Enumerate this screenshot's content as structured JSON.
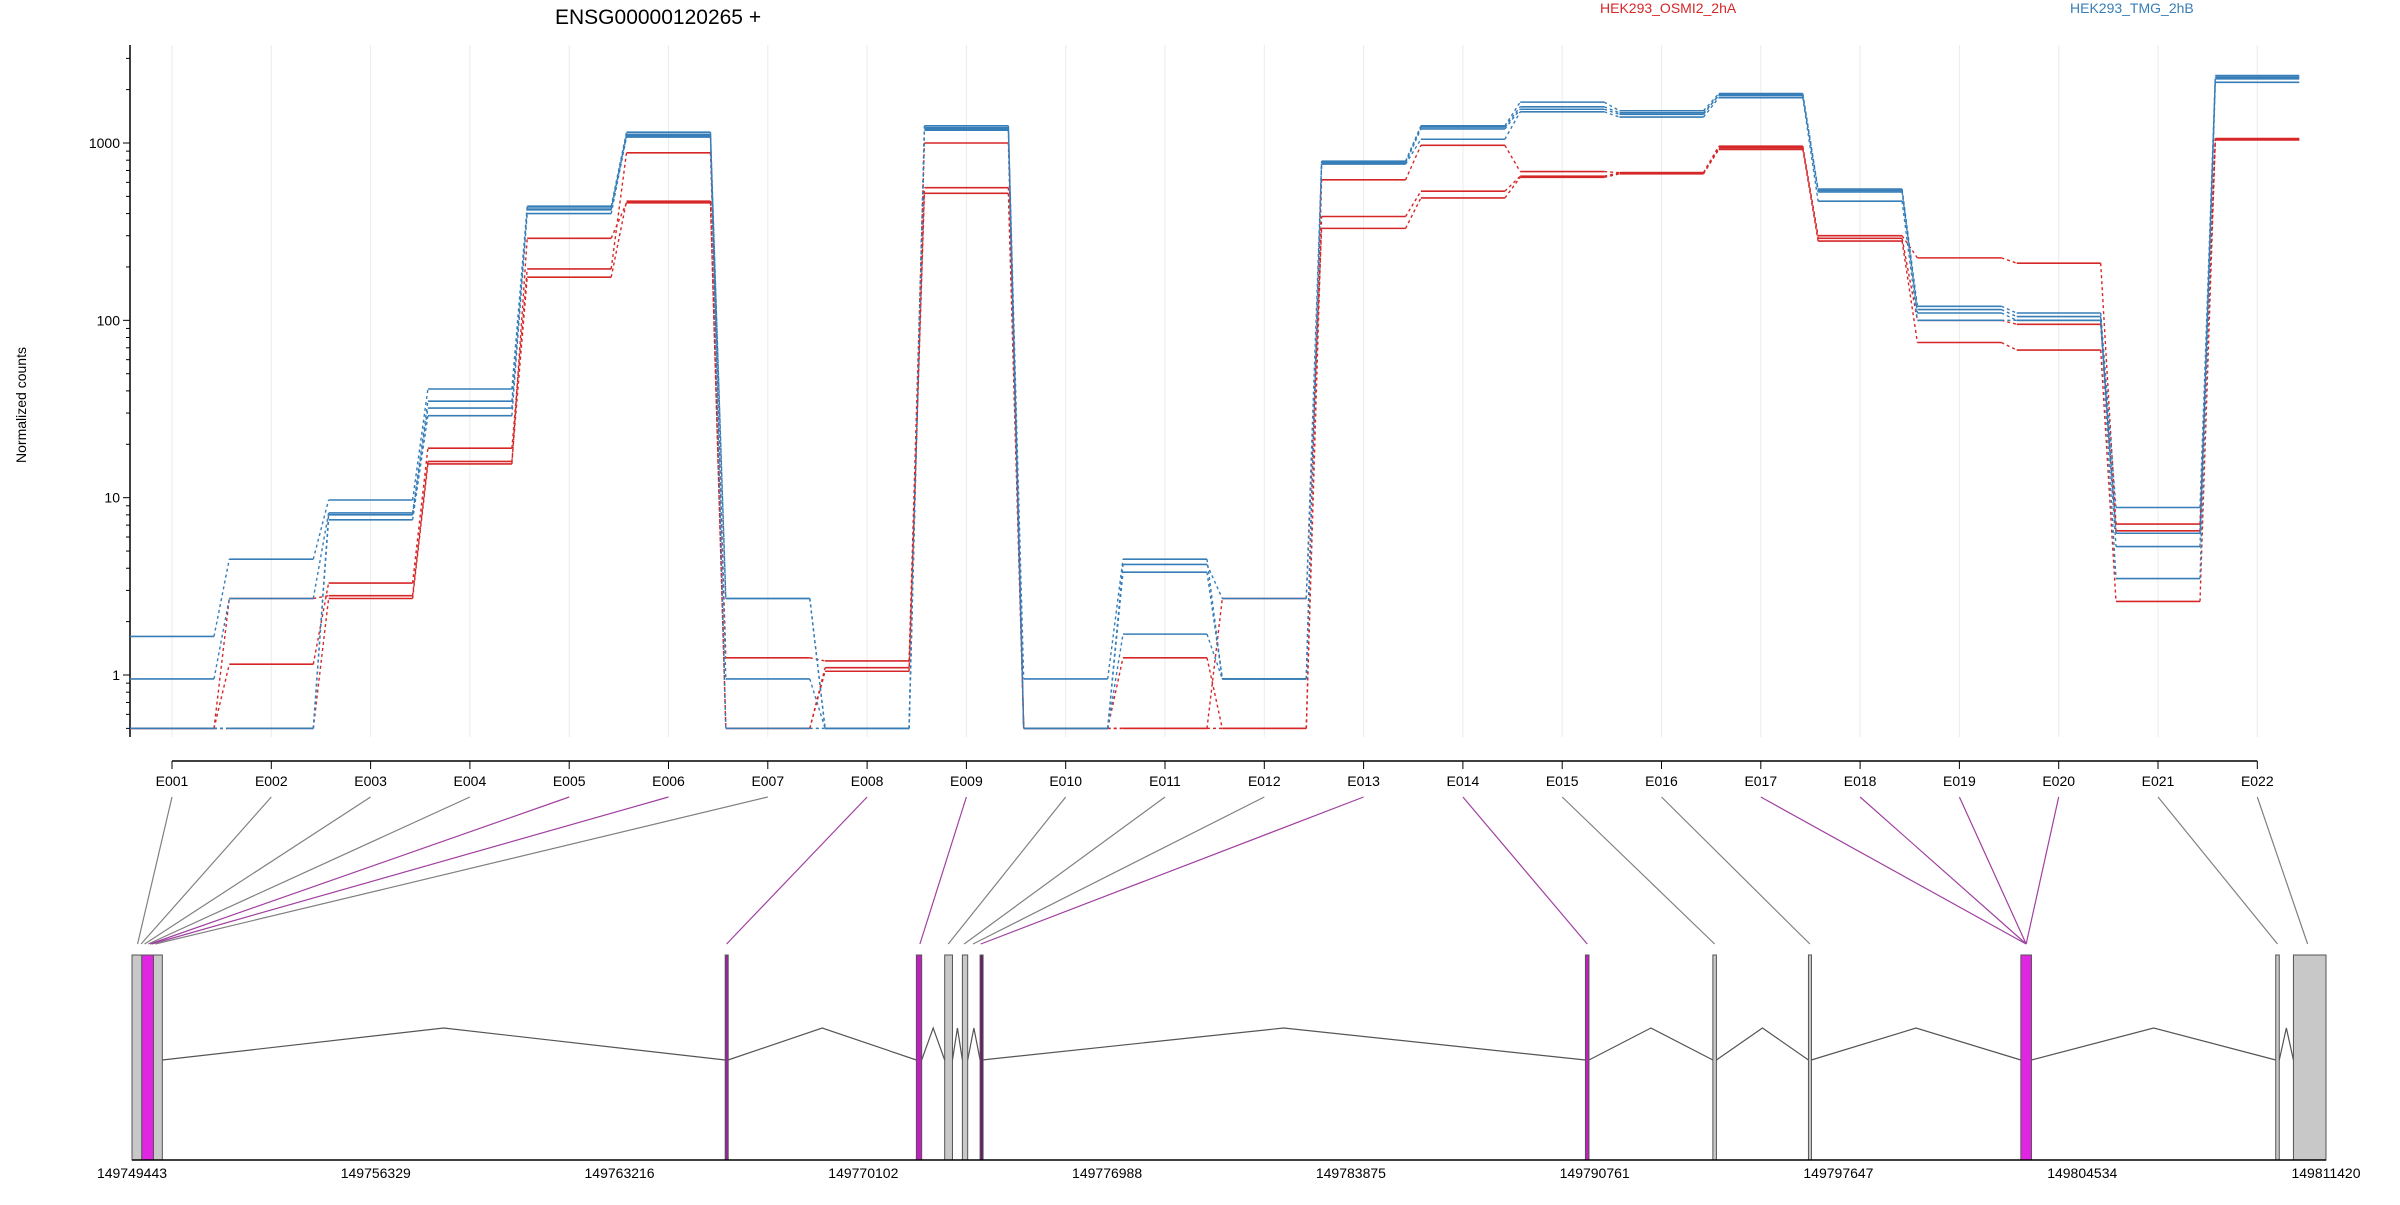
{
  "chart_data": {
    "type": "line",
    "title": "ENSG00000120265 +",
    "ylabel": "Normalized counts",
    "yscale": "log",
    "ylim": [
      0.5,
      3500
    ],
    "yticks": [
      1,
      10,
      100,
      1000
    ],
    "ytick_labels": [
      "1",
      "10",
      "100",
      "1000"
    ],
    "grid": "vertical-light",
    "legend_placement": "top-right",
    "legend": [
      {
        "label": "HEK293_OSMI2_2hA",
        "color": "#d62728"
      },
      {
        "label": "HEK293_TMG_2hB",
        "color": "#377eb8"
      }
    ],
    "categories": [
      "E001",
      "E002",
      "E003",
      "E004",
      "E005",
      "E006",
      "E007",
      "E008",
      "E009",
      "E010",
      "E011",
      "E012",
      "E013",
      "E014",
      "E015",
      "E016",
      "E017",
      "E018",
      "E019",
      "E020",
      "E021",
      "E022"
    ],
    "series": [
      {
        "color": "#d62728",
        "values": [
          0.5,
          1.15,
          3.3,
          19,
          195,
          880,
          1.25,
          1.2,
          1000,
          0.5,
          1.25,
          0.5,
          620,
          970,
          690,
          680,
          960,
          300,
          225,
          210,
          7.1,
          1060
        ]
      },
      {
        "color": "#d62728",
        "values": [
          0.5,
          2.7,
          2.8,
          16,
          175,
          470,
          0.5,
          1.1,
          560,
          0.5,
          0.5,
          0.5,
          385,
          535,
          650,
          680,
          940,
          290,
          100,
          95,
          6.5,
          1050
        ]
      },
      {
        "color": "#d62728",
        "values": [
          0.5,
          0.5,
          2.7,
          15.5,
          290,
          460,
          0.5,
          1.05,
          520,
          0.5,
          0.5,
          2.7,
          330,
          490,
          640,
          670,
          920,
          280,
          75,
          68,
          2.6,
          1040
        ]
      },
      {
        "color": "#377eb8",
        "values": [
          1.65,
          4.5,
          9.7,
          41,
          440,
          1150,
          2.7,
          0.5,
          1250,
          0.95,
          4.5,
          0.95,
          790,
          1250,
          1700,
          1520,
          1900,
          550,
          120,
          110,
          8.8,
          2400
        ]
      },
      {
        "color": "#377eb8",
        "values": [
          0.95,
          2.7,
          8.2,
          35,
          430,
          1120,
          0.95,
          0.5,
          1200,
          0.5,
          4.2,
          2.7,
          780,
          1230,
          1600,
          1480,
          1850,
          540,
          115,
          105,
          5.3,
          2300
        ]
      },
      {
        "color": "#377eb8",
        "values": [
          0.5,
          0.5,
          7.5,
          29,
          400,
          1080,
          0.5,
          0.5,
          1180,
          0.5,
          1.7,
          0.95,
          760,
          1050,
          1500,
          1400,
          1800,
          470,
          100,
          100,
          3.5,
          2200
        ]
      },
      {
        "color": "#377eb8",
        "values": [
          0.5,
          0.5,
          8.0,
          32,
          420,
          1100,
          2.7,
          0.5,
          1220,
          0.5,
          3.8,
          0.95,
          770,
          1200,
          1550,
          1450,
          1870,
          530,
          110,
          100,
          6.3,
          2350
        ]
      }
    ],
    "genomic_axis": {
      "range": [
        149749443,
        149811420
      ],
      "ticks": [
        149749443,
        149756329,
        149763216,
        149770102,
        149776988,
        149783875,
        149790761,
        149797647,
        149804534,
        149811420
      ],
      "tick_labels": [
        "149749443",
        "149756329",
        "149763216",
        "149770102",
        "149776988",
        "149783875",
        "149790761",
        "149797647",
        "149804534",
        "149811420"
      ]
    },
    "exon_model": [
      {
        "start": 149749443,
        "end": 149749720,
        "color": "#c8c8c8"
      },
      {
        "start": 149749720,
        "end": 149750050,
        "color": "#e026e0"
      },
      {
        "start": 149750050,
        "end": 149750300,
        "color": "#c8c8c8"
      },
      {
        "start": 149766200,
        "end": 149766280,
        "color": "#a020a0"
      },
      {
        "start": 149771600,
        "end": 149771750,
        "color": "#c020c0"
      },
      {
        "start": 149772400,
        "end": 149772620,
        "color": "#c8c8c8"
      },
      {
        "start": 149772900,
        "end": 149773050,
        "color": "#c8c8c8"
      },
      {
        "start": 149773400,
        "end": 149773450,
        "color": "#6a1a6a"
      },
      {
        "start": 149790500,
        "end": 149790600,
        "color": "#c020c0"
      },
      {
        "start": 149794100,
        "end": 149794200,
        "color": "#c8c8c8"
      },
      {
        "start": 149796800,
        "end": 149796880,
        "color": "#c8c8c8"
      },
      {
        "start": 149802800,
        "end": 149803100,
        "color": "#e026e0"
      },
      {
        "start": 149810000,
        "end": 149810100,
        "color": "#c8c8c8"
      },
      {
        "start": 149810500,
        "end": 149811420,
        "color": "#c8c8c8"
      }
    ],
    "exon_links": [
      {
        "bin": "E001",
        "pos": 149749600,
        "color": "#808080"
      },
      {
        "bin": "E002",
        "pos": 149749700,
        "color": "#808080"
      },
      {
        "bin": "E003",
        "pos": 149749800,
        "color": "#808080"
      },
      {
        "bin": "E004",
        "pos": 149749900,
        "color": "#808080"
      },
      {
        "bin": "E005",
        "pos": 149749950,
        "color": "#a040a0"
      },
      {
        "bin": "E006",
        "pos": 149750000,
        "color": "#a040a0"
      },
      {
        "bin": "E007",
        "pos": 149750100,
        "color": "#808080"
      },
      {
        "bin": "E008",
        "pos": 149766240,
        "color": "#a040a0"
      },
      {
        "bin": "E009",
        "pos": 149771700,
        "color": "#a040a0"
      },
      {
        "bin": "E010",
        "pos": 149772500,
        "color": "#808080"
      },
      {
        "bin": "E011",
        "pos": 149772950,
        "color": "#808080"
      },
      {
        "bin": "E012",
        "pos": 149773200,
        "color": "#808080"
      },
      {
        "bin": "E013",
        "pos": 149773420,
        "color": "#a040a0"
      },
      {
        "bin": "E014",
        "pos": 149790550,
        "color": "#a040a0"
      },
      {
        "bin": "E015",
        "pos": 149794150,
        "color": "#808080"
      },
      {
        "bin": "E016",
        "pos": 149796840,
        "color": "#808080"
      },
      {
        "bin": "E017",
        "pos": 149802950,
        "color": "#a040a0"
      },
      {
        "bin": "E018",
        "pos": 149802950,
        "color": "#a040a0"
      },
      {
        "bin": "E019",
        "pos": 149802950,
        "color": "#a040a0"
      },
      {
        "bin": "E020",
        "pos": 149802950,
        "color": "#a040a0"
      },
      {
        "bin": "E021",
        "pos": 149810050,
        "color": "#808080"
      },
      {
        "bin": "E022",
        "pos": 149810900,
        "color": "#808080"
      }
    ]
  }
}
